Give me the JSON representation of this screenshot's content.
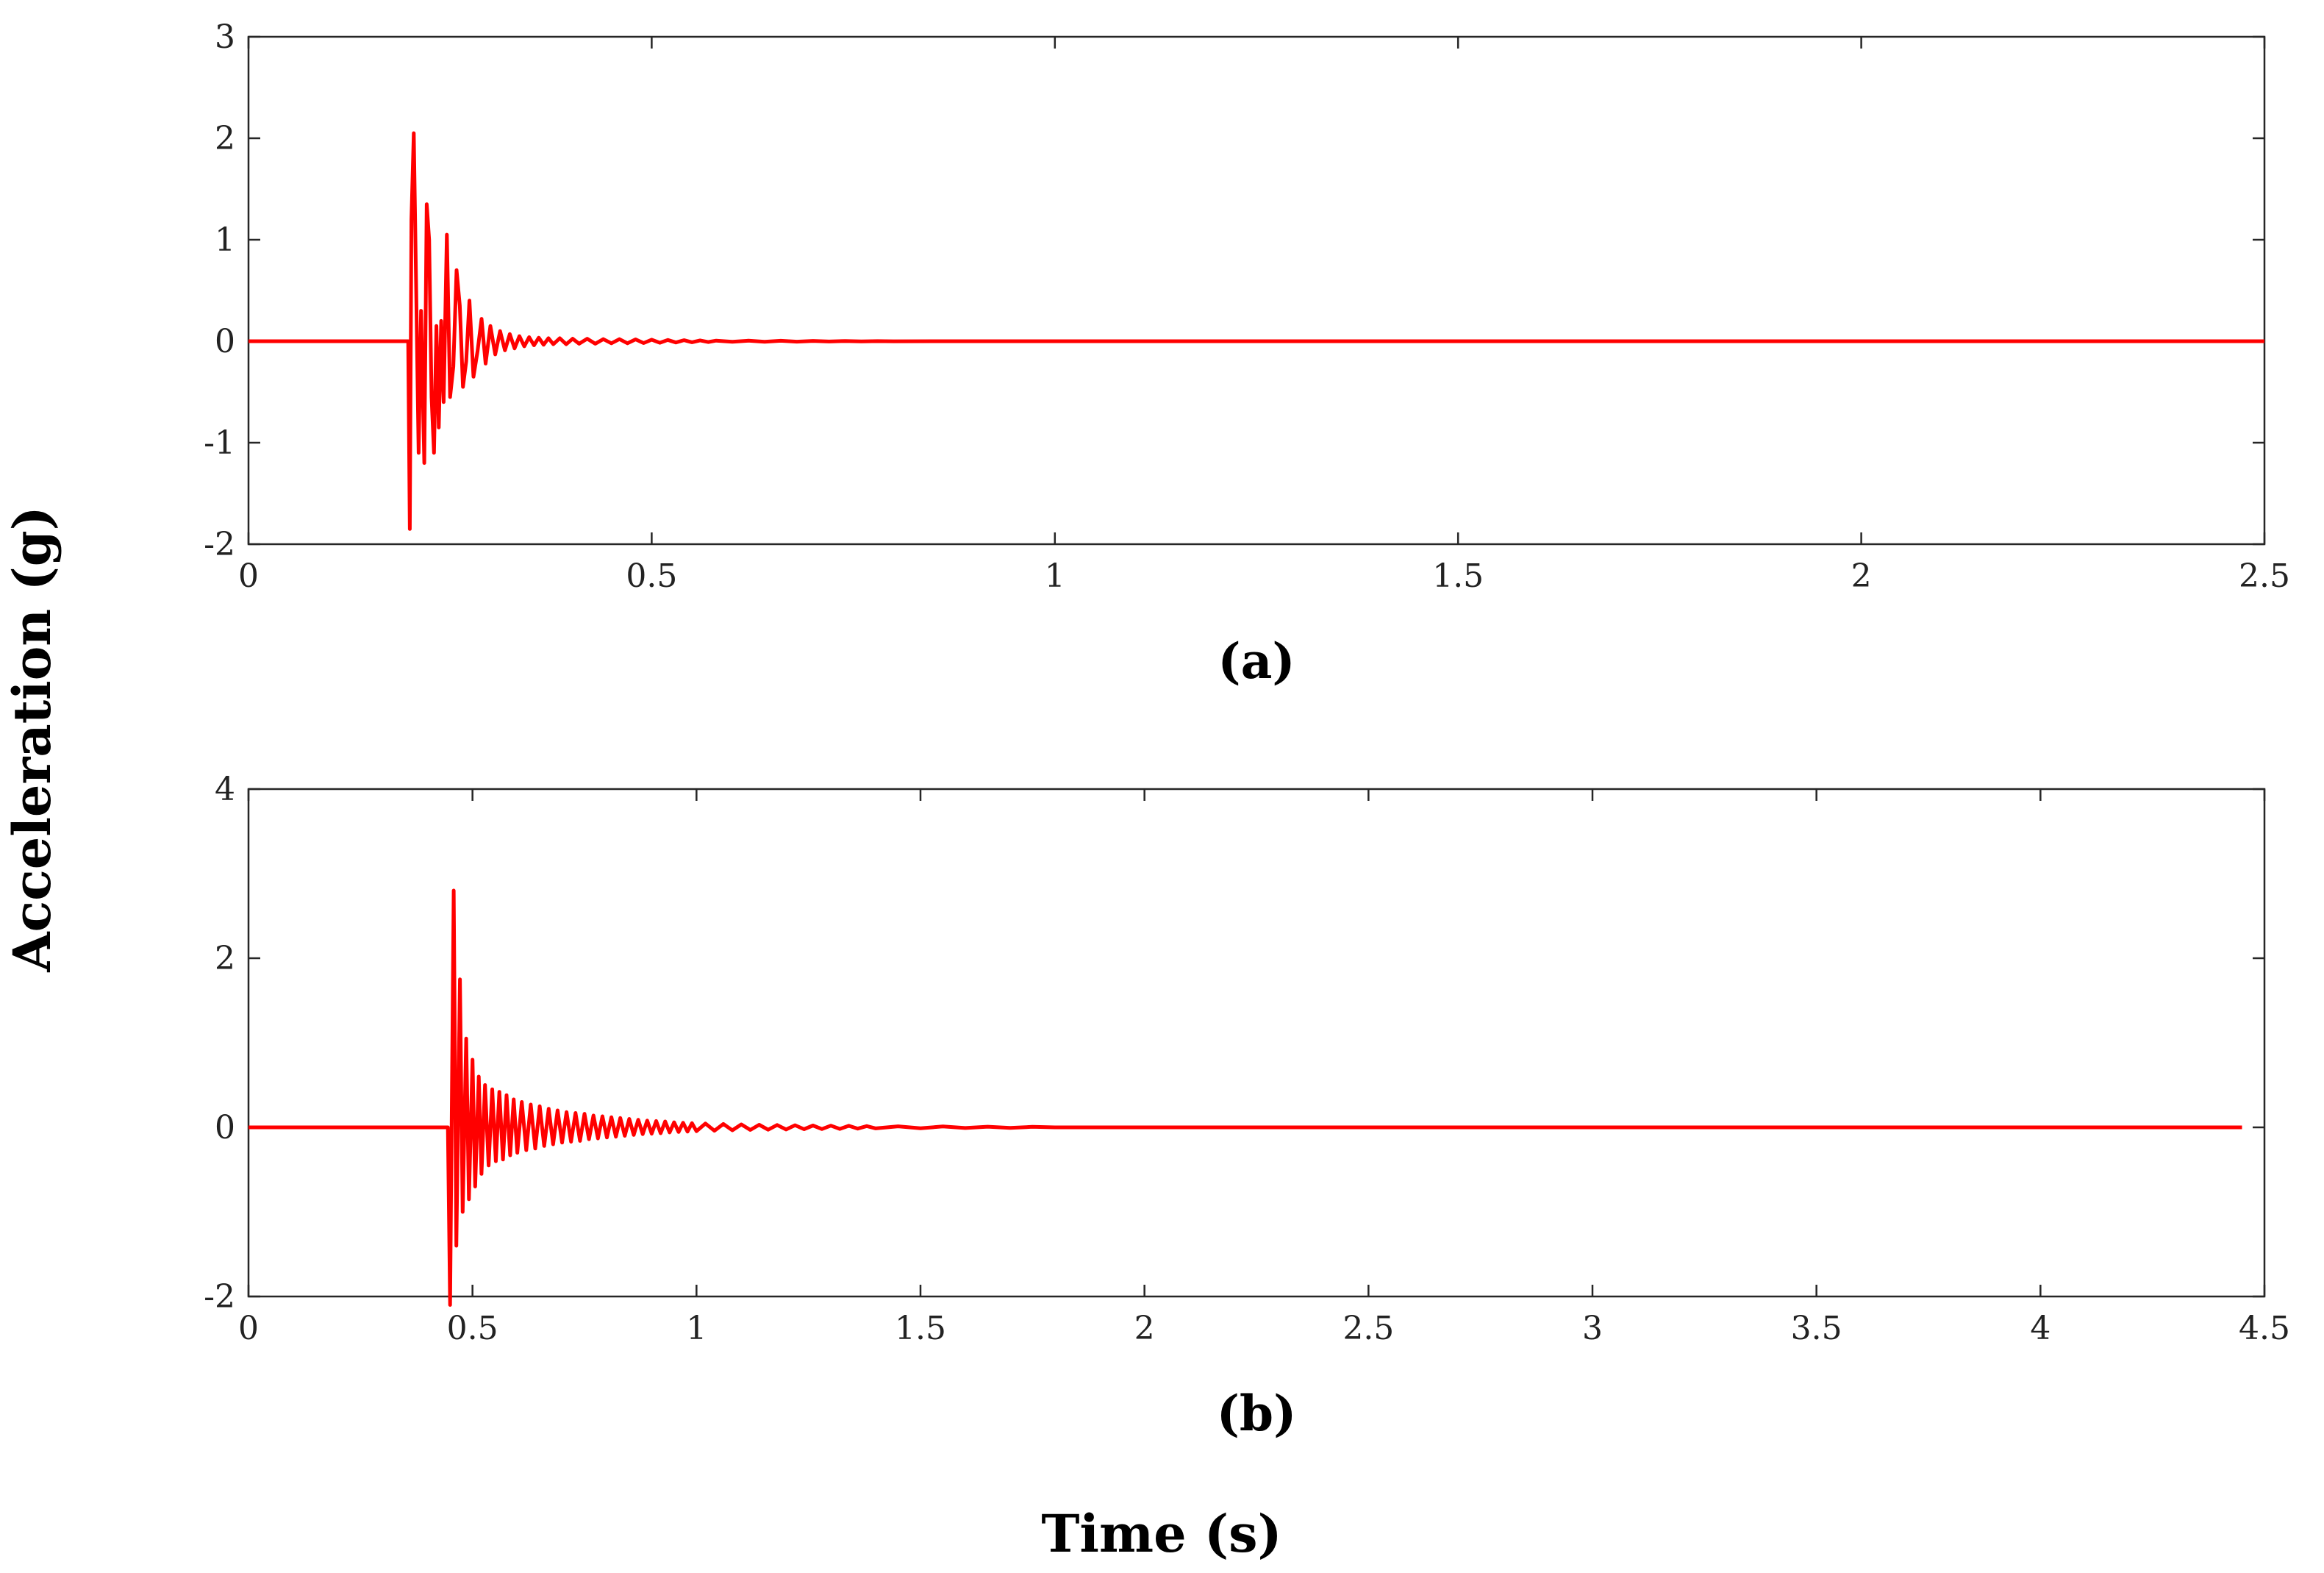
{
  "figure": {
    "ylabel": "Acceleration (g)",
    "xlabel": "Time (s)"
  },
  "chart_data": [
    {
      "type": "line",
      "caption": "(a)",
      "xlim": [
        0,
        2.5
      ],
      "ylim": [
        -2,
        3
      ],
      "x_ticks": [
        "0",
        "0.5",
        "1",
        "1.5",
        "2",
        "2.5"
      ],
      "y_ticks": [
        "-2",
        "-1",
        "0",
        "1",
        "2",
        "3"
      ],
      "grid": false,
      "color": "#ff0000",
      "series": [
        {
          "x": [
            0,
            0.198,
            0.2,
            0.202,
            0.205,
            0.208,
            0.211,
            0.214,
            0.218,
            0.221,
            0.224,
            0.227,
            0.23,
            0.233,
            0.236,
            0.239,
            0.242,
            0.246,
            0.25,
            0.254,
            0.258,
            0.262,
            0.266,
            0.27,
            0.274,
            0.279,
            0.284,
            0.289,
            0.294,
            0.3,
            0.306,
            0.312,
            0.318,
            0.324,
            0.33,
            0.336,
            0.342,
            0.348,
            0.354,
            0.36,
            0.366,
            0.372,
            0.378,
            0.386,
            0.394,
            0.402,
            0.41,
            0.42,
            0.43,
            0.44,
            0.45,
            0.46,
            0.47,
            0.48,
            0.49,
            0.5,
            0.51,
            0.52,
            0.53,
            0.54,
            0.55,
            0.56,
            0.57,
            0.58,
            0.6,
            0.62,
            0.64,
            0.66,
            0.68,
            0.7,
            0.72,
            0.74,
            0.76,
            0.78,
            0.8,
            0.85,
            0.9,
            2.5
          ],
          "y": [
            0,
            0,
            -1.85,
            1.2,
            2.05,
            0.5,
            -1.1,
            0.3,
            -1.2,
            1.35,
            1.0,
            -0.55,
            -1.1,
            0.15,
            -0.85,
            0.2,
            -0.6,
            1.05,
            -0.55,
            -0.25,
            0.7,
            0.35,
            -0.45,
            -0.2,
            0.4,
            -0.35,
            -0.1,
            0.22,
            -0.22,
            0.15,
            -0.13,
            0.1,
            -0.09,
            0.07,
            -0.07,
            0.05,
            -0.05,
            0.04,
            -0.04,
            0.035,
            -0.035,
            0.03,
            -0.03,
            0.03,
            -0.03,
            0.025,
            -0.025,
            0.025,
            -0.025,
            0.02,
            -0.02,
            0.02,
            -0.02,
            0.018,
            -0.018,
            0.015,
            -0.015,
            0.012,
            -0.012,
            0.01,
            -0.01,
            0.008,
            -0.008,
            0.006,
            -0.006,
            0.005,
            -0.005,
            0.004,
            -0.004,
            0.003,
            -0.003,
            0.002,
            -0.002,
            0.001,
            -0.001,
            0,
            0,
            0
          ]
        }
      ]
    },
    {
      "type": "line",
      "caption": "(b)",
      "xlim": [
        0,
        4.5
      ],
      "ylim": [
        -2,
        4
      ],
      "x_ticks": [
        "0",
        "0.5",
        "1",
        "1.5",
        "2",
        "2.5",
        "3",
        "3.5",
        "4",
        "4.5"
      ],
      "y_ticks": [
        "-2",
        "0",
        "2",
        "4"
      ],
      "grid": false,
      "color": "#ff0000",
      "series": [
        {
          "x": [
            0,
            0.445,
            0.45,
            0.458,
            0.464,
            0.472,
            0.478,
            0.486,
            0.492,
            0.5,
            0.506,
            0.514,
            0.52,
            0.528,
            0.536,
            0.544,
            0.552,
            0.56,
            0.568,
            0.576,
            0.584,
            0.592,
            0.6,
            0.61,
            0.62,
            0.63,
            0.64,
            0.65,
            0.66,
            0.67,
            0.68,
            0.69,
            0.7,
            0.71,
            0.72,
            0.73,
            0.74,
            0.75,
            0.76,
            0.77,
            0.78,
            0.79,
            0.8,
            0.81,
            0.82,
            0.83,
            0.84,
            0.85,
            0.86,
            0.87,
            0.88,
            0.89,
            0.9,
            0.91,
            0.92,
            0.93,
            0.94,
            0.95,
            0.96,
            0.97,
            0.98,
            0.99,
            1.0,
            1.02,
            1.04,
            1.06,
            1.08,
            1.1,
            1.12,
            1.14,
            1.16,
            1.18,
            1.2,
            1.22,
            1.24,
            1.26,
            1.28,
            1.3,
            1.32,
            1.34,
            1.36,
            1.38,
            1.4,
            1.45,
            1.5,
            1.55,
            1.6,
            1.65,
            1.7,
            1.75,
            1.8,
            4.45
          ],
          "y": [
            0,
            0,
            -2.1,
            2.8,
            -1.4,
            1.75,
            -1.0,
            1.05,
            -0.85,
            0.8,
            -0.7,
            0.6,
            -0.55,
            0.5,
            -0.45,
            0.45,
            -0.4,
            0.42,
            -0.38,
            0.38,
            -0.33,
            0.33,
            -0.3,
            0.3,
            -0.27,
            0.27,
            -0.25,
            0.25,
            -0.22,
            0.22,
            -0.2,
            0.2,
            -0.18,
            0.18,
            -0.17,
            0.17,
            -0.16,
            0.16,
            -0.14,
            0.14,
            -0.13,
            0.13,
            -0.12,
            0.12,
            -0.11,
            0.11,
            -0.1,
            0.1,
            -0.09,
            0.09,
            -0.08,
            0.08,
            -0.075,
            0.075,
            -0.07,
            0.07,
            -0.06,
            0.06,
            -0.055,
            0.055,
            -0.05,
            0.05,
            -0.045,
            0.045,
            -0.04,
            0.04,
            -0.035,
            0.035,
            -0.03,
            0.03,
            -0.028,
            0.028,
            -0.025,
            0.025,
            -0.022,
            0.022,
            -0.02,
            0.02,
            -0.018,
            0.018,
            -0.015,
            0.015,
            -0.012,
            0.012,
            -0.01,
            0.01,
            -0.008,
            0.008,
            -0.006,
            0.006,
            0,
            0
          ]
        }
      ]
    }
  ]
}
